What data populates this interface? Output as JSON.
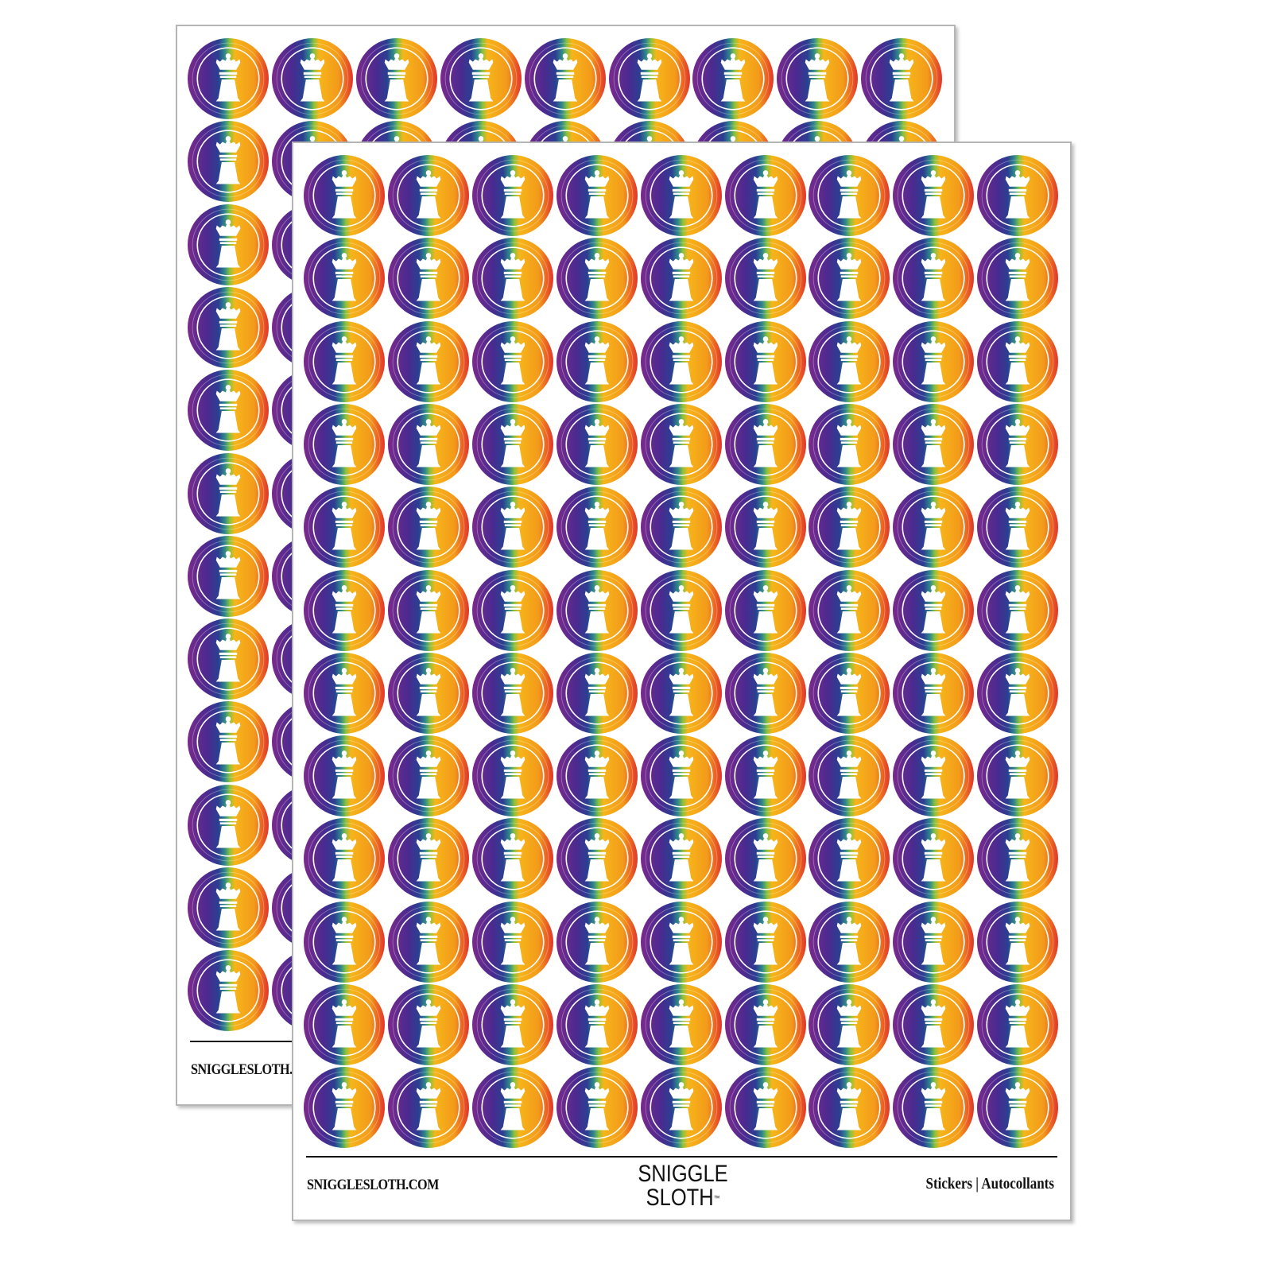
{
  "product": {
    "sheets": 2,
    "rows": 12,
    "columns": 9,
    "sticker_design": "queen-chess-piece-icon",
    "gradient_colors": [
      "#6a2a8e",
      "#3b2f8f",
      "#2e6fa0",
      "#6bb544",
      "#f6b21a",
      "#f08a1c",
      "#e23b24"
    ]
  },
  "back_sheet": {
    "site": "SNIGGLESLOTH.COM"
  },
  "front_sheet": {
    "site": "SNIGGLESLOTH.COM",
    "logo_line1": "SNIGGLE",
    "logo_line2": "SLOTH",
    "logo_tm": "™",
    "types": "Stickers  |  Autocollants"
  }
}
